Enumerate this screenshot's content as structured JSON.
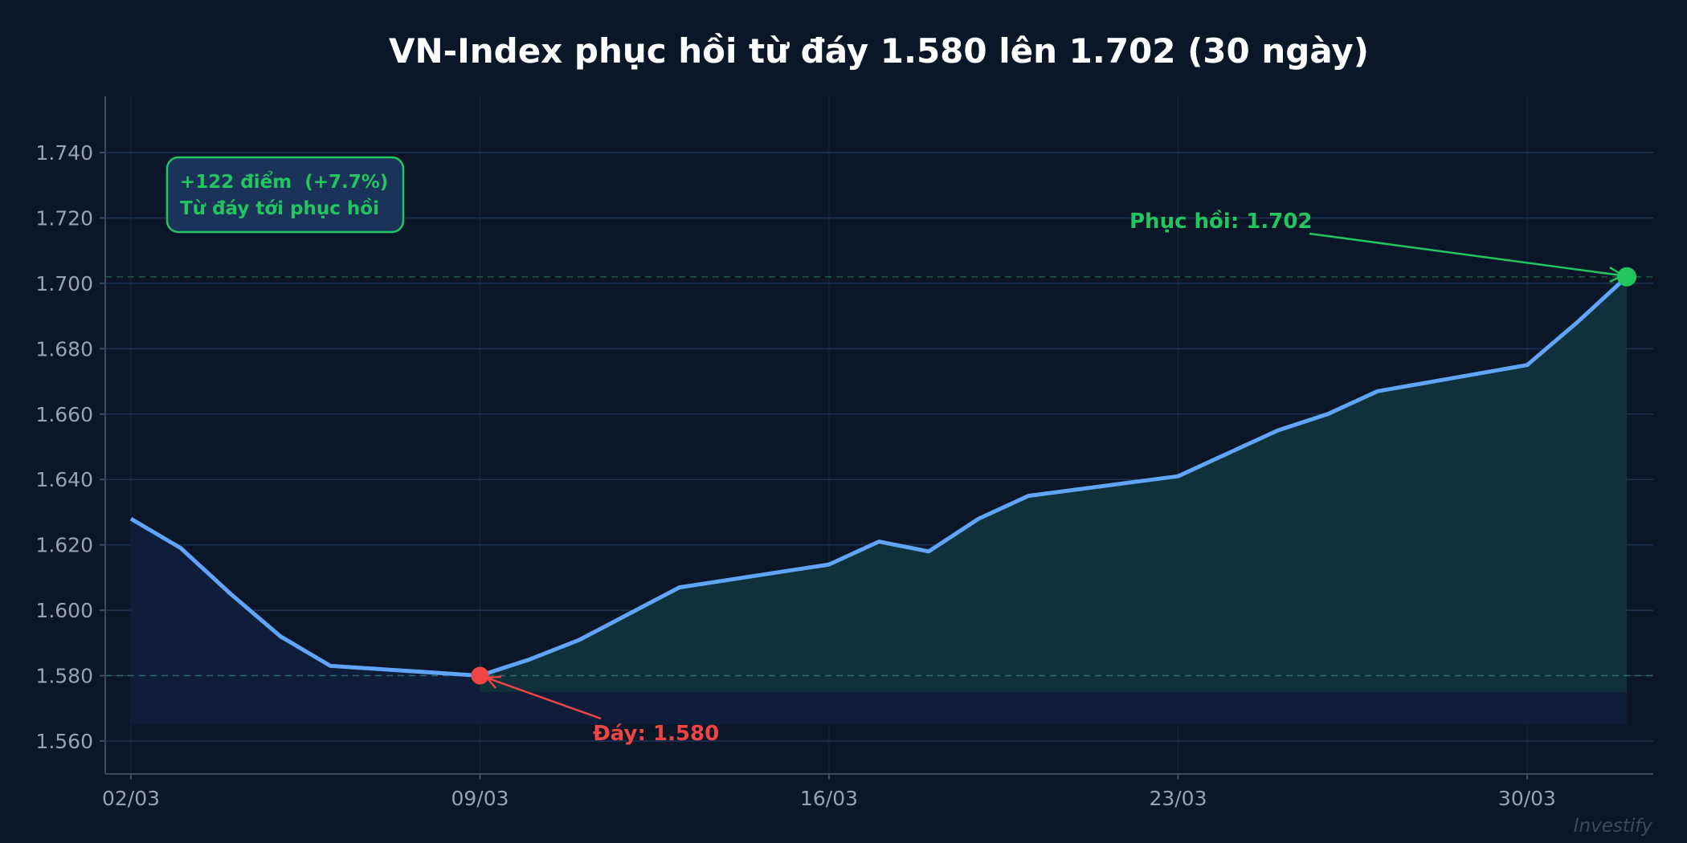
{
  "chart_data": {
    "type": "line",
    "title": "VN-Index phục hồi từ đáy 1.580 lên 1.702 (30 ngày)",
    "xlabel": "",
    "ylabel": "",
    "x": [
      "02/03",
      "03/03",
      "04/03",
      "05/03",
      "06/03",
      "09/03",
      "10/03",
      "11/03",
      "12/03",
      "13/03",
      "16/03",
      "17/03",
      "18/03",
      "19/03",
      "20/03",
      "23/03",
      "24/03",
      "25/03",
      "26/03",
      "27/03",
      "30/03",
      "31/03",
      "01/04"
    ],
    "x_day_offset": [
      0,
      1,
      2,
      3,
      4,
      7,
      8,
      9,
      10,
      11,
      14,
      15,
      16,
      17,
      18,
      21,
      22,
      23,
      24,
      25,
      28,
      29,
      30
    ],
    "series": [
      {
        "name": "VN-Index",
        "color": "#60a5fa",
        "values": [
          1628,
          1619,
          1605,
          1592,
          1583,
          1580,
          1585,
          1591,
          1599,
          1607,
          1614,
          1621,
          1618,
          1628,
          1635,
          1641,
          1648,
          1655,
          1660,
          1667,
          1675,
          1688,
          1702
        ]
      }
    ],
    "x_ticks": [
      "02/03",
      "09/03",
      "16/03",
      "23/03",
      "30/03"
    ],
    "x_tick_offsets": [
      0,
      7,
      14,
      21,
      28
    ],
    "y_ticks": [
      1560,
      1580,
      1600,
      1620,
      1640,
      1660,
      1680,
      1700,
      1720,
      1740
    ],
    "y_tick_labels": [
      "1.560",
      "1.580",
      "1.600",
      "1.620",
      "1.640",
      "1.660",
      "1.680",
      "1.700",
      "1.720",
      "1.740"
    ],
    "ylim": [
      1550,
      1757
    ],
    "grid": true,
    "reference_lines": [
      {
        "value": 1580,
        "style": "dashed",
        "color": "#2dd4bf"
      },
      {
        "value": 1702,
        "style": "dashed",
        "color": "#22c55e"
      }
    ],
    "annotations": [
      {
        "text": "Đáy: 1.580",
        "x": "09/03",
        "y": 1580,
        "color": "#ef4444"
      },
      {
        "text": "Phục hồi: 1.702",
        "x": "01/04",
        "y": 1702,
        "color": "#22c55e"
      }
    ],
    "info_box": {
      "line1": "+122 điểm  (+7.7%)",
      "line2": "Từ đáy tới phục hồi"
    },
    "watermark": "Investify"
  },
  "colors": {
    "background": "#0b1628",
    "line": "#60a5fa",
    "fill_decline": "#0e1d3a",
    "fill_recovery": "#10313b",
    "bottom_marker": "#ef4444",
    "peak_marker": "#22c55e",
    "info_box_bg": "#1b3359",
    "info_box_border": "#22c55e"
  }
}
